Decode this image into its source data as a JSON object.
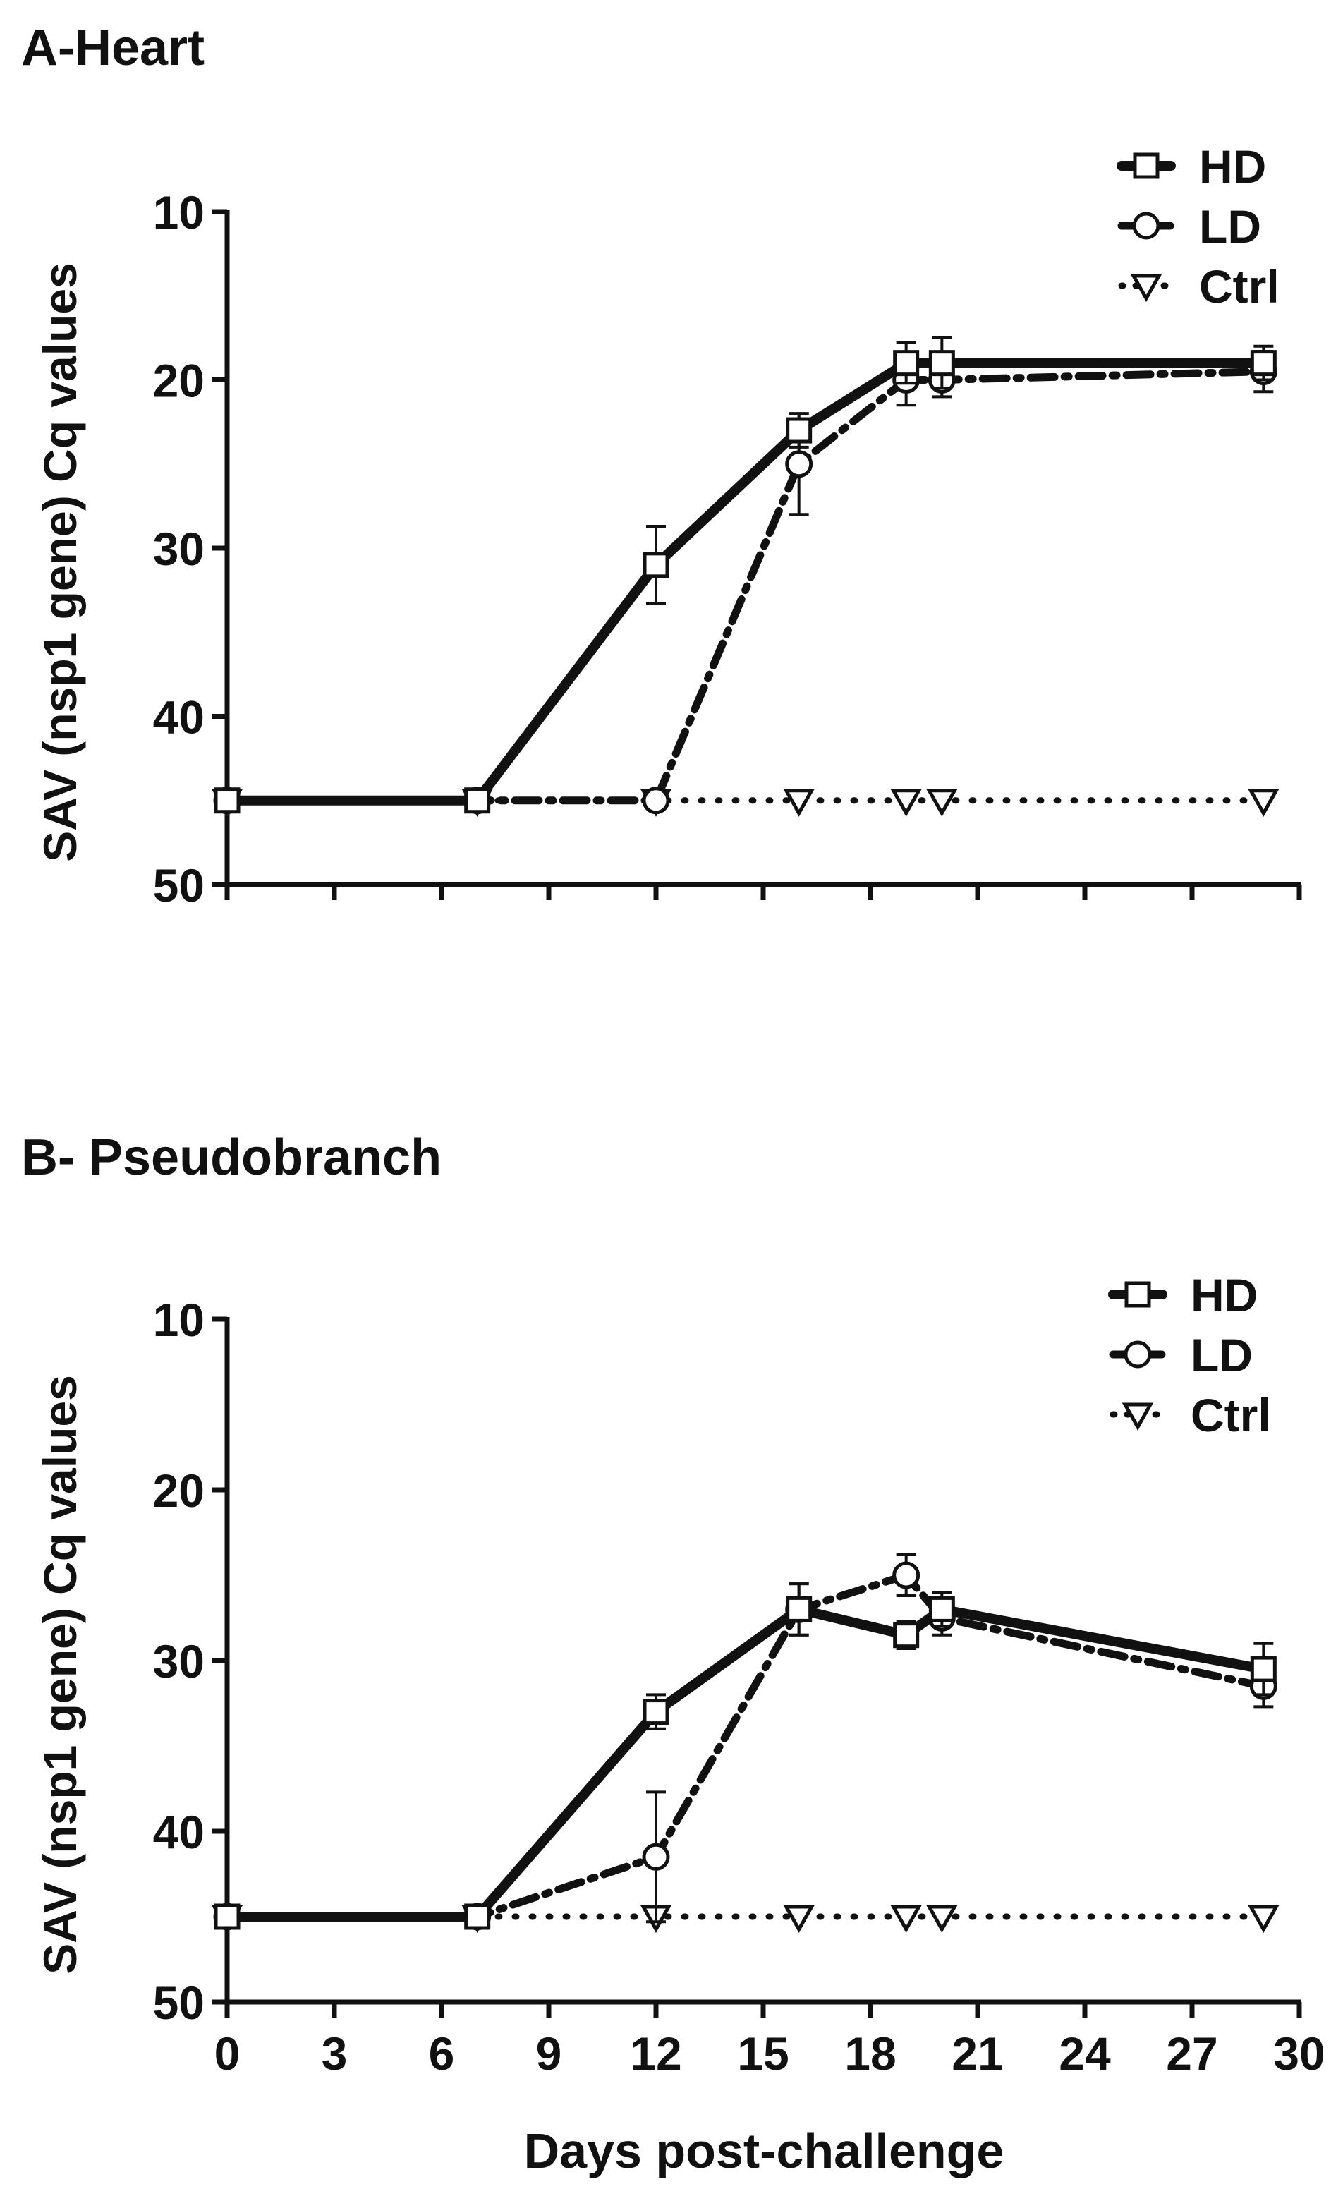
{
  "figure": {
    "shared_xlabel": "Days post-challenge"
  },
  "chart_data": [
    {
      "type": "line",
      "panel_title": "A-Heart",
      "ylabel": "SAV (nsp1 gene) Cq values",
      "xlabel": "Days post-challenge",
      "xlim": [
        0,
        30
      ],
      "ylim": [
        10,
        50
      ],
      "y_inverted": true,
      "xticks": [
        0,
        3,
        6,
        9,
        12,
        15,
        18,
        21,
        24,
        27,
        30
      ],
      "yticks": [
        10,
        20,
        30,
        40,
        50
      ],
      "show_x_tick_labels": false,
      "grid": false,
      "legend": "top-right",
      "series": [
        {
          "name": "HD",
          "style": "solid",
          "marker": "square",
          "x": [
            0,
            7,
            12,
            16,
            19,
            20,
            29
          ],
          "y": [
            45,
            45,
            31,
            23,
            19,
            19,
            19
          ],
          "err": [
            0,
            0,
            2.3,
            1.0,
            1.2,
            1.5,
            1.0
          ]
        },
        {
          "name": "LD",
          "style": "dash-dot",
          "marker": "circle",
          "x": [
            0,
            7,
            12,
            16,
            19,
            20,
            29
          ],
          "y": [
            45,
            45,
            45,
            25,
            20,
            20,
            19.5
          ],
          "err": [
            0,
            0,
            0,
            3.0,
            1.5,
            1.0,
            1.2
          ]
        },
        {
          "name": "Ctrl",
          "style": "dotted",
          "marker": "triangle-down",
          "x": [
            0,
            7,
            12,
            16,
            19,
            20,
            29
          ],
          "y": [
            45,
            45,
            45,
            45,
            45,
            45,
            45
          ],
          "err": [
            0,
            0,
            0,
            0,
            0,
            0,
            0
          ]
        }
      ]
    },
    {
      "type": "line",
      "panel_title": "B- Pseudobranch",
      "ylabel": "SAV (nsp1 gene) Cq values",
      "xlabel": "Days post-challenge",
      "xlim": [
        0,
        30
      ],
      "ylim": [
        10,
        50
      ],
      "y_inverted": true,
      "xticks": [
        0,
        3,
        6,
        9,
        12,
        15,
        18,
        21,
        24,
        27,
        30
      ],
      "yticks": [
        10,
        20,
        30,
        40,
        50
      ],
      "show_x_tick_labels": true,
      "grid": false,
      "legend": "top-right",
      "series": [
        {
          "name": "HD",
          "style": "solid",
          "marker": "square",
          "x": [
            0,
            7,
            12,
            16,
            19,
            20,
            29
          ],
          "y": [
            45,
            45,
            33,
            27,
            28.5,
            27,
            30.5
          ],
          "err": [
            0,
            0,
            1.0,
            1.5,
            0.8,
            1.0,
            1.5
          ]
        },
        {
          "name": "LD",
          "style": "dash-dot",
          "marker": "circle",
          "x": [
            0,
            7,
            12,
            16,
            19,
            20,
            29
          ],
          "y": [
            45,
            45,
            41.5,
            27,
            25,
            27.5,
            31.5
          ],
          "err": [
            0,
            0,
            3.8,
            1.5,
            1.2,
            1.0,
            1.2
          ]
        },
        {
          "name": "Ctrl",
          "style": "dotted",
          "marker": "triangle-down",
          "x": [
            0,
            7,
            12,
            16,
            19,
            20,
            29
          ],
          "y": [
            45,
            45,
            45,
            45,
            45,
            45,
            45
          ],
          "err": [
            0,
            0,
            0,
            0,
            0,
            0,
            0
          ]
        }
      ]
    }
  ]
}
